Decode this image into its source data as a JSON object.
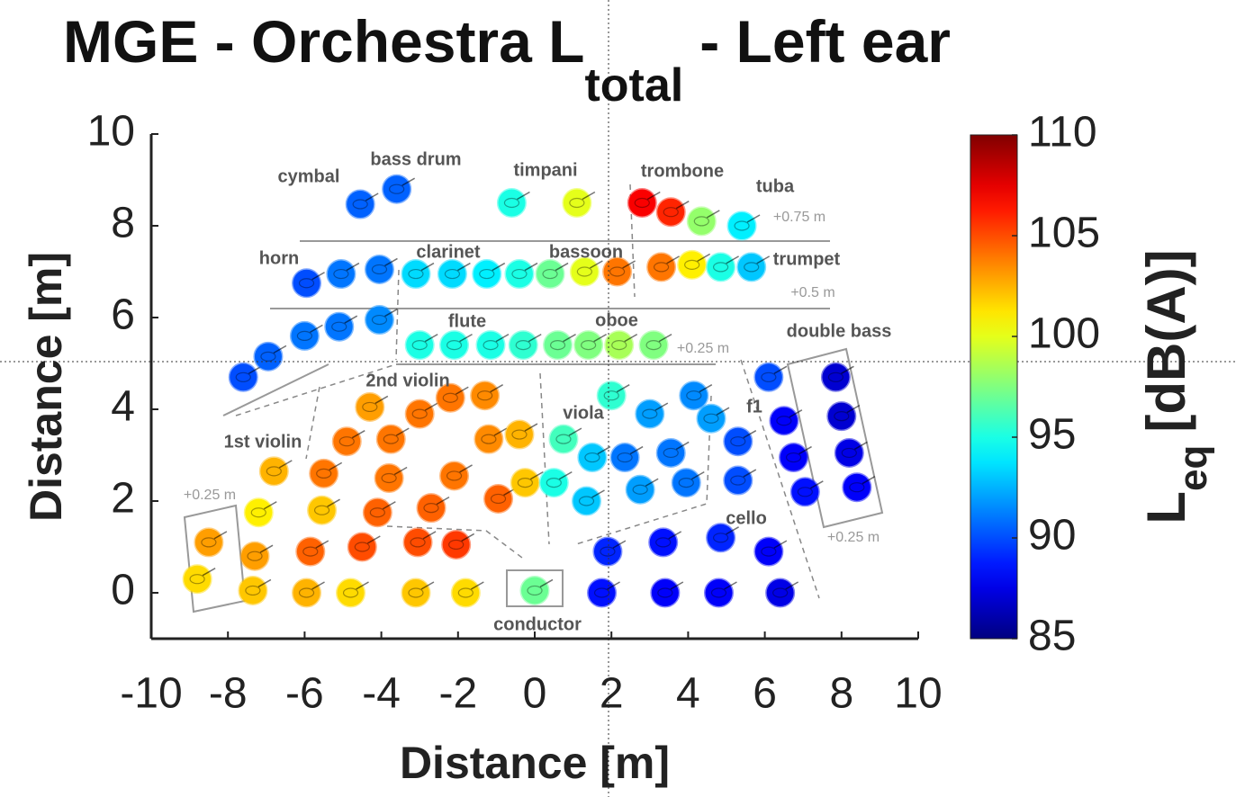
{
  "chart_data": {
    "type": "scatter",
    "title": "MGE - Orchestra L",
    "title_subscript": "total",
    "title_suffix": "- Left ear",
    "x_label": "Distance [m]",
    "y_label": "Distance [m]",
    "xlim": [
      -10,
      10
    ],
    "xticks": [
      -10,
      -8,
      -6,
      -4,
      -2,
      0,
      2,
      4,
      6,
      8,
      10
    ],
    "ylim": [
      -1,
      10
    ],
    "yticks": [
      0,
      2,
      4,
      6,
      8,
      10
    ],
    "colormap": "jet",
    "colorbar": {
      "label": "L",
      "label_subscript": "eq",
      "label_suffix": "[dB(A)]",
      "clim": [
        85,
        110
      ],
      "ticks": [
        85,
        90,
        95,
        100,
        105,
        110
      ]
    },
    "x": [
      -4.55,
      -3.6,
      -0.6,
      1.1,
      2.8,
      3.55,
      4.35,
      5.4,
      -5.95,
      -5.05,
      -4.05,
      -7.6,
      -6.95,
      -6.0,
      -5.1,
      -4.05,
      -3.1,
      -2.15,
      -1.25,
      -0.4,
      0.4,
      1.3,
      2.15,
      3.3,
      4.1,
      4.85,
      5.65,
      -3.0,
      -2.1,
      -1.15,
      -0.3,
      0.6,
      1.4,
      2.2,
      3.1,
      -8.5,
      -8.8,
      -7.2,
      -7.3,
      -7.35,
      -6.8,
      -5.5,
      -5.55,
      -5.85,
      -5.95,
      -4.9,
      -4.5,
      -4.8,
      -4.3,
      -3.75,
      -3.8,
      -4.1,
      -3.0,
      -2.2,
      -1.3,
      -3.05,
      -2.05,
      -3.1,
      -1.8,
      -1.2,
      -0.4,
      -2.1,
      -2.7,
      -0.95,
      -0.25,
      0.75,
      0.5,
      1.5,
      1.35,
      2.0,
      2.35,
      3.0,
      2.75,
      3.55,
      3.95,
      4.15,
      4.6,
      5.3,
      5.3,
      6.1,
      1.9,
      3.35,
      4.85,
      6.1,
      1.75,
      3.4,
      4.8,
      6.4,
      6.5,
      6.75,
      7.05,
      7.85,
      8.0,
      8.2,
      8.4,
      0.0
    ],
    "y": [
      8.47,
      8.8,
      8.5,
      8.5,
      8.5,
      8.3,
      8.1,
      8.0,
      6.75,
      6.95,
      7.05,
      4.7,
      5.15,
      5.6,
      5.8,
      5.95,
      6.95,
      6.95,
      6.95,
      6.95,
      6.95,
      7.0,
      7.0,
      7.1,
      7.15,
      7.1,
      7.1,
      5.4,
      5.4,
      5.4,
      5.4,
      5.4,
      5.4,
      5.4,
      5.4,
      1.1,
      0.3,
      1.75,
      0.8,
      0.05,
      2.65,
      2.6,
      1.8,
      0.9,
      0.0,
      3.3,
      1.0,
      0.0,
      4.05,
      3.35,
      2.5,
      1.75,
      3.9,
      4.25,
      4.3,
      1.1,
      1.05,
      0.0,
      0.0,
      3.35,
      3.45,
      2.55,
      1.85,
      2.05,
      2.4,
      3.35,
      2.4,
      2.95,
      2.0,
      4.3,
      2.95,
      3.9,
      2.25,
      3.05,
      2.4,
      4.3,
      3.8,
      3.3,
      2.45,
      4.7,
      0.9,
      1.1,
      1.2,
      0.9,
      0.0,
      0.0,
      0.0,
      0.0,
      3.75,
      2.95,
      2.2,
      4.7,
      3.85,
      3.05,
      2.3,
      0.05
    ],
    "values": [
      90.5,
      90.5,
      95,
      100,
      107,
      106,
      98,
      94,
      90,
      91,
      91,
      90,
      90.5,
      91,
      91,
      91.5,
      93.5,
      93.5,
      94,
      95,
      97,
      100,
      104,
      104,
      101,
      95,
      93,
      95,
      95,
      95,
      95.5,
      97,
      97.5,
      98.5,
      97.5,
      103,
      101.5,
      101,
      103,
      102,
      102.5,
      104,
      102,
      104.5,
      102.5,
      104,
      105,
      101.5,
      103,
      104,
      104,
      104.5,
      104,
      104,
      103.5,
      105,
      105.5,
      102,
      101.5,
      103.5,
      102.5,
      104,
      104.5,
      104.5,
      102,
      96,
      95,
      93,
      93,
      95.5,
      91,
      92,
      92,
      91,
      91,
      91.5,
      92,
      90,
      90,
      90,
      89,
      88.5,
      89,
      88,
      88.5,
      88,
      88,
      87.5,
      88,
      88,
      88.5,
      87,
      87,
      87.5,
      88,
      97
    ],
    "annotations": [
      "cymbal",
      "bass drum",
      "timpani",
      "trombone",
      "tuba",
      "+0.75 m",
      "horn",
      "clarinet",
      "bassoon",
      "trumpet",
      "+0.5 m",
      "flute",
      "oboe",
      "+0.25 m",
      "double bass",
      "2nd violin",
      "viola",
      "f1",
      "1st violin",
      "+0.25 m",
      "cello",
      "+0.25 m",
      "conductor"
    ]
  }
}
